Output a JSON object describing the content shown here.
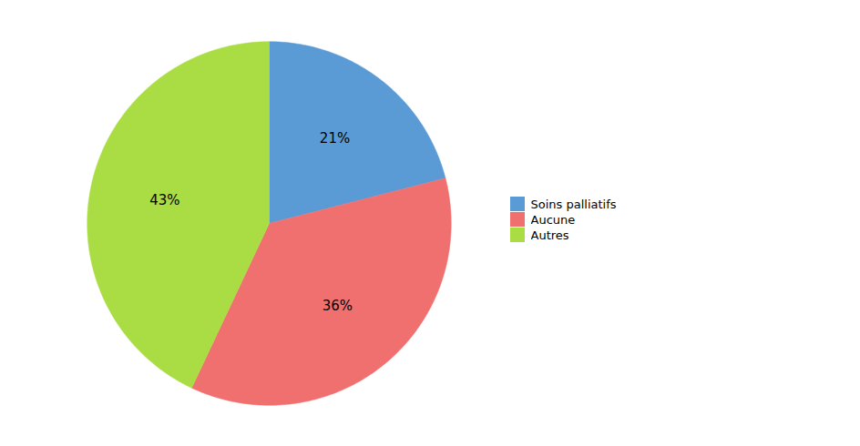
{
  "chart_data": {
    "type": "pie",
    "categories": [
      "Soins palliatifs",
      "Aucune",
      "Autres"
    ],
    "values": [
      21,
      36,
      43
    ],
    "value_labels": [
      "21%",
      "36%",
      "43%"
    ],
    "colors": [
      "#5B9BD5",
      "#F07070",
      "#AADD44"
    ],
    "data_labels": true,
    "legend": "right"
  }
}
